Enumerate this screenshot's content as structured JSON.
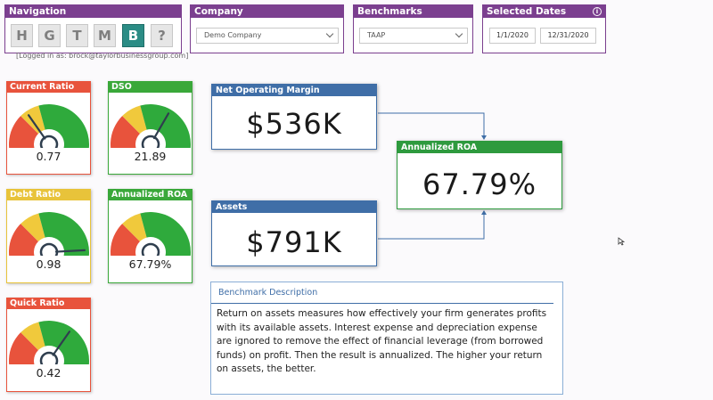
{
  "navigation": {
    "title": "Navigation",
    "buttons": [
      {
        "label": "H",
        "active": false
      },
      {
        "label": "G",
        "active": false
      },
      {
        "label": "T",
        "active": false
      },
      {
        "label": "M",
        "active": false
      },
      {
        "label": "B",
        "active": true
      },
      {
        "label": "?",
        "active": false
      }
    ]
  },
  "company": {
    "title": "Company",
    "selected": "Demo Company"
  },
  "benchmarks": {
    "title": "Benchmarks",
    "selected": "TAAP"
  },
  "dates": {
    "title": "Selected Dates",
    "start": "1/1/2020",
    "end": "12/31/2020"
  },
  "logged_in": "[Logged in as: brock@taylorbusinessgroup.com]",
  "gauges": [
    {
      "title": "Current Ratio",
      "value": "0.77",
      "header_color": "#e8533c",
      "needle_angle": -35
    },
    {
      "title": "DSO",
      "value": "21.89",
      "header_color": "#3aa83a",
      "needle_angle": 30
    },
    {
      "title": "Debt Ratio",
      "value": "0.98",
      "header_color": "#e8c33a",
      "needle_angle": 87
    },
    {
      "title": "Annualized ROA",
      "value": "67.79%",
      "header_color": "#3aa83a",
      "needle_angle": 140
    },
    {
      "title": "Quick Ratio",
      "value": "0.42",
      "header_color": "#e8533c",
      "needle_angle": 35
    }
  ],
  "kpis": {
    "nom": {
      "title": "Net Operating Margin",
      "value": "$536K",
      "color": "#3f6ea7"
    },
    "assets": {
      "title": "Assets",
      "value": "$791K",
      "color": "#3f6ea7"
    },
    "roa": {
      "title": "Annualized ROA",
      "value": "67.79%",
      "color": "#2e9a3e"
    }
  },
  "description": {
    "title": "Benchmark Description",
    "text": "Return on assets measures how effectively your firm generates profits with its available assets. Interest expense and depreciation expense are ignored to remove the effect of financial leverage (from borrowed funds) on profit. Then the result is annualized. The higher your return on assets, the better."
  }
}
